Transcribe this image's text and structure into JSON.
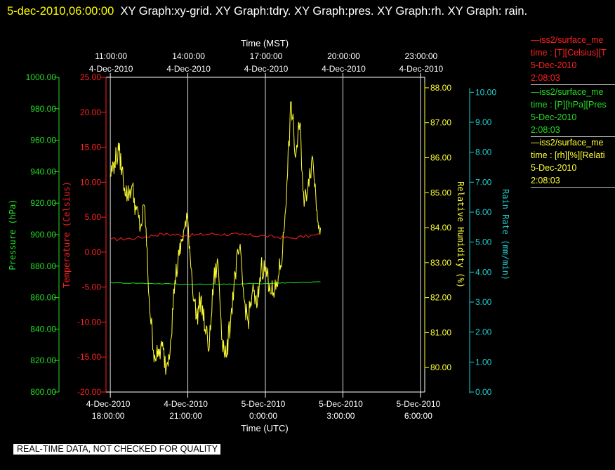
{
  "header": {
    "date": "5-dec-2010,06:00:00",
    "text": "XY Graph:xy-grid.  XY Graph:tdry.  XY Graph:pres.  XY Graph:rh.  XY Graph: rain."
  },
  "notice": "REAL-TIME DATA, NOT CHECKED FOR QUALITY",
  "legend": [
    {
      "line1": "—iss2/surface_me",
      "line2": "time : [T][Celsius][T",
      "line3": "5-Dec-2010",
      "line4": "2:08:03",
      "color": "#ff2020"
    },
    {
      "line1": "—iss2/surface_me",
      "line2": "time : [P][hPa][Pres",
      "line3": "5-Dec-2010",
      "line4": "2:08:03",
      "color": "#22dd22"
    },
    {
      "line1": "—iss2/surface_me",
      "line2": "time : [rh][%][Relati",
      "line3": "5-Dec-2010",
      "line4": "2:08:03",
      "color": "#ffff33"
    }
  ],
  "chart_data": {
    "type": "line",
    "top_axis": {
      "title": "Time (MST)",
      "ticks": [
        {
          "time": "11:00:00",
          "date": "4-Dec-2010"
        },
        {
          "time": "14:00:00",
          "date": "4-Dec-2010"
        },
        {
          "time": "17:00:00",
          "date": "4-Dec-2010"
        },
        {
          "time": "20:00:00",
          "date": "4-Dec-2010"
        },
        {
          "time": "23:00:00",
          "date": "4-Dec-2010"
        }
      ]
    },
    "bottom_axis": {
      "title": "Time (UTC)",
      "ticks": [
        {
          "date": "4-Dec-2010",
          "time": "18:00:00"
        },
        {
          "date": "4-Dec-2010",
          "time": "21:00:00"
        },
        {
          "date": "5-Dec-2010",
          "time": "0:00:00"
        },
        {
          "date": "5-Dec-2010",
          "time": "3:00:00"
        },
        {
          "date": "5-Dec-2010",
          "time": "6:00:00"
        }
      ],
      "range_utc": [
        "2010-12-04 17:50",
        "2010-12-05 06:10"
      ]
    },
    "grid": "vertical",
    "axes": [
      {
        "id": "pres",
        "title": "Pressure (hPa)",
        "color": "#22dd22",
        "side": "left",
        "range": [
          800,
          1000
        ],
        "ticks": [
          "800.00",
          "820.00",
          "840.00",
          "860.00",
          "880.00",
          "900.00",
          "920.00",
          "940.00",
          "960.00",
          "980.00",
          "1000.00"
        ]
      },
      {
        "id": "tdry",
        "title": "Temperature (Celsius)",
        "color": "#ff2020",
        "side": "left",
        "range": [
          -20,
          25
        ],
        "ticks": [
          "-20.00",
          "-15.00",
          "-10.00",
          "-5.00",
          "0.00",
          "5.00",
          "10.00",
          "15.00",
          "20.00",
          "25.00"
        ]
      },
      {
        "id": "rh",
        "title": "Relative Humidity (%)",
        "color": "#ffff33",
        "side": "right",
        "range": [
          79.3,
          88.3
        ],
        "ticks": [
          "80.00",
          "81.00",
          "82.00",
          "83.00",
          "84.00",
          "85.00",
          "86.00",
          "87.00",
          "88.00"
        ]
      },
      {
        "id": "rain",
        "title": "Rain Rate (mm/min)",
        "color": "#22cccc",
        "side": "right",
        "range": [
          0,
          10.5
        ],
        "ticks": [
          "0.00",
          "1.00",
          "2.00",
          "3.00",
          "4.00",
          "5.00",
          "6.00",
          "7.00",
          "8.00",
          "9.00",
          "10.00"
        ]
      }
    ],
    "series": [
      {
        "axis": "tdry",
        "color": "#ff2020",
        "x": [
          "2010-12-04 18:00",
          "2010-12-04 19:00",
          "2010-12-04 20:00",
          "2010-12-04 21:00",
          "2010-12-04 22:00",
          "2010-12-04 23:00",
          "2010-12-05 00:00",
          "2010-12-05 01:00",
          "2010-12-05 02:08"
        ],
        "y": [
          1.8,
          2.0,
          2.6,
          2.4,
          2.6,
          2.5,
          2.3,
          2.0,
          2.5
        ]
      },
      {
        "axis": "pres",
        "color": "#22dd22",
        "x": [
          "2010-12-04 18:00",
          "2010-12-04 19:30",
          "2010-12-04 21:00",
          "2010-12-04 22:30",
          "2010-12-05 00:00",
          "2010-12-05 01:00",
          "2010-12-05 02:08"
        ],
        "y": [
          869.5,
          869.0,
          868.5,
          868.5,
          869.0,
          869.5,
          870.0
        ]
      },
      {
        "axis": "rh",
        "color": "#ffff33",
        "x": [
          "2010-12-04 18:00",
          "2010-12-04 18:10",
          "2010-12-04 18:20",
          "2010-12-04 18:30",
          "2010-12-04 18:40",
          "2010-12-04 18:50",
          "2010-12-04 19:00",
          "2010-12-04 19:10",
          "2010-12-04 19:20",
          "2010-12-04 19:30",
          "2010-12-04 19:40",
          "2010-12-04 19:50",
          "2010-12-04 20:00",
          "2010-12-04 20:10",
          "2010-12-04 20:20",
          "2010-12-04 20:30",
          "2010-12-04 20:40",
          "2010-12-04 20:50",
          "2010-12-04 21:00",
          "2010-12-04 21:10",
          "2010-12-04 21:20",
          "2010-12-04 21:30",
          "2010-12-04 21:40",
          "2010-12-04 21:50",
          "2010-12-04 22:00",
          "2010-12-04 22:10",
          "2010-12-04 22:20",
          "2010-12-04 22:30",
          "2010-12-04 22:40",
          "2010-12-04 22:50",
          "2010-12-04 23:00",
          "2010-12-04 23:10",
          "2010-12-04 23:20",
          "2010-12-04 23:30",
          "2010-12-04 23:40",
          "2010-12-04 23:50",
          "2010-12-05 00:00",
          "2010-12-05 00:10",
          "2010-12-05 00:20",
          "2010-12-05 00:30",
          "2010-12-05 00:40",
          "2010-12-05 00:50",
          "2010-12-05 01:00",
          "2010-12-05 01:10",
          "2010-12-05 01:20",
          "2010-12-05 01:30",
          "2010-12-05 01:40",
          "2010-12-05 01:50",
          "2010-12-05 02:00",
          "2010-12-05 02:08"
        ],
        "y": [
          85.5,
          85.9,
          86.2,
          85.4,
          84.9,
          85.2,
          84.5,
          84.0,
          84.6,
          82.0,
          80.5,
          80.3,
          80.6,
          80.0,
          80.8,
          82.5,
          83.2,
          83.9,
          84.2,
          82.5,
          81.4,
          82.0,
          81.1,
          80.6,
          82.5,
          83.0,
          80.8,
          80.3,
          81.5,
          82.7,
          83.4,
          82.0,
          81.3,
          82.2,
          81.7,
          82.9,
          82.8,
          82.4,
          82.0,
          82.6,
          83.3,
          85.3,
          87.6,
          86.0,
          87.0,
          84.6,
          85.4,
          86.0,
          84.5,
          84.0
        ]
      }
    ]
  }
}
